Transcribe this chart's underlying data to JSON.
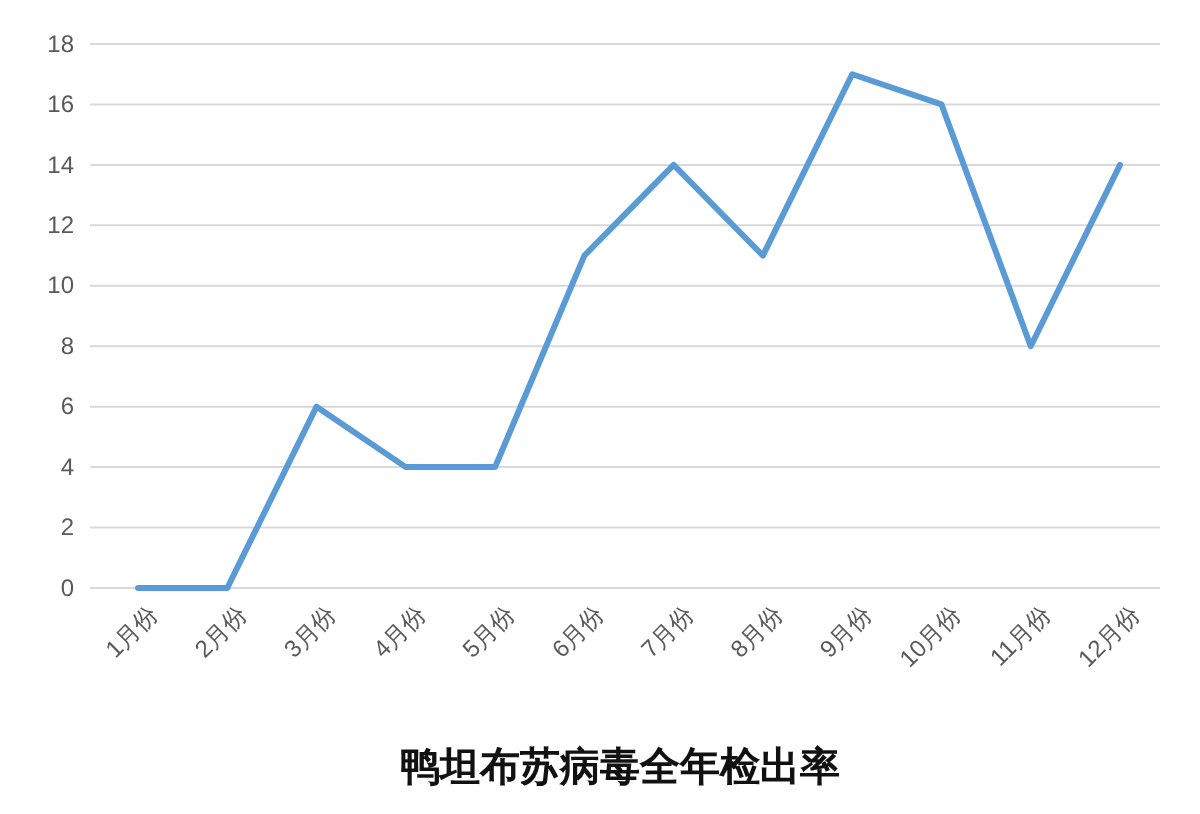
{
  "chart_data": {
    "type": "line",
    "title": "鸭坦布苏病毒全年检出率",
    "categories": [
      "1月份",
      "2月份",
      "3月份",
      "4月份",
      "5月份",
      "6月份",
      "7月份",
      "8月份",
      "9月份",
      "10月份",
      "11月份",
      "12月份"
    ],
    "series": [
      {
        "color": "#5b9bd5",
        "values": [
          0,
          0,
          6,
          4,
          4,
          11,
          14,
          11,
          17,
          16,
          8,
          14
        ]
      }
    ],
    "ylim": [
      0,
      18
    ],
    "yticks": [
      0,
      2,
      4,
      6,
      8,
      10,
      12,
      14,
      16,
      18
    ],
    "grid": "y",
    "marker": "none",
    "line_style": "solid"
  }
}
